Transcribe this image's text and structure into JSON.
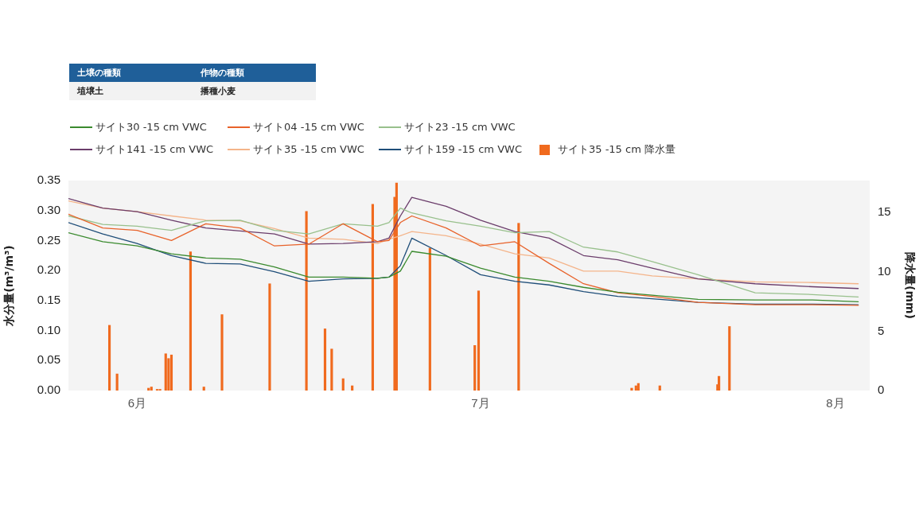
{
  "chart_data": {
    "type": "line",
    "xlabel": null,
    "ylabel": "水分量(m³/m³)",
    "y2label": "降水量(mm)",
    "annotations": [
      "土壌の種類",
      "作物の種類",
      "埴壌土",
      "播種小麦"
    ],
    "x": [
      "--05-26",
      "--05-29",
      "--06-01",
      "--06-04",
      "--06-07",
      "--06-10",
      "--06-13",
      "--06-16",
      "--06-19",
      "--06-22",
      "--06-23",
      "--06-24",
      "--06-25",
      "--06-28",
      "--07-01",
      "--07-04",
      "--07-07",
      "--07-10",
      "--07-13",
      "--07-16",
      "--07-20",
      "--07-25",
      "--07-30",
      "--08-03"
    ],
    "series": [
      {
        "name": "サイト30 -15 cm VWC",
        "color": "#3a8a2e",
        "values": [
          0.263,
          0.248,
          0.241,
          0.228,
          0.221,
          0.219,
          0.206,
          0.189,
          0.189,
          0.187,
          0.189,
          0.199,
          0.232,
          0.224,
          0.204,
          0.189,
          0.182,
          0.172,
          0.164,
          0.159,
          0.152,
          0.151,
          0.151,
          0.148
        ]
      },
      {
        "name": "サイト04 -15 cm VWC",
        "color": "#e8622a",
        "values": [
          0.294,
          0.271,
          0.267,
          0.25,
          0.278,
          0.271,
          0.241,
          0.244,
          0.278,
          0.248,
          0.25,
          0.28,
          0.291,
          0.271,
          0.241,
          0.248,
          0.212,
          0.178,
          0.163,
          0.157,
          0.147,
          0.143,
          0.143,
          0.142
        ]
      },
      {
        "name": "サイト23 -15 cm VWC",
        "color": "#98c08c",
        "values": [
          0.291,
          0.277,
          0.274,
          0.267,
          0.283,
          0.284,
          0.267,
          0.261,
          0.278,
          0.274,
          0.28,
          0.304,
          0.296,
          0.283,
          0.274,
          0.263,
          0.265,
          0.239,
          0.231,
          0.215,
          0.193,
          0.163,
          0.16,
          0.156
        ]
      },
      {
        "name": "サイト141 -15 cm VWC",
        "color": "#6b3d6b",
        "values": [
          0.32,
          0.304,
          0.298,
          0.284,
          0.271,
          0.266,
          0.261,
          0.244,
          0.245,
          0.248,
          0.254,
          0.291,
          0.322,
          0.307,
          0.284,
          0.265,
          0.254,
          0.225,
          0.218,
          0.204,
          0.186,
          0.178,
          0.173,
          0.17
        ]
      },
      {
        "name": "サイト35 -15 cm VWC",
        "color": "#f4b48a",
        "values": [
          0.316,
          0.304,
          0.298,
          0.291,
          0.284,
          0.283,
          0.27,
          0.254,
          0.252,
          0.245,
          0.252,
          0.258,
          0.265,
          0.258,
          0.244,
          0.228,
          0.221,
          0.199,
          0.199,
          0.191,
          0.186,
          0.181,
          0.18,
          0.178
        ]
      },
      {
        "name": "サイト159 -15 cm VWC",
        "color": "#1f4e79",
        "values": [
          0.28,
          0.261,
          0.245,
          0.225,
          0.212,
          0.211,
          0.198,
          0.182,
          0.186,
          0.187,
          0.189,
          0.208,
          0.254,
          0.225,
          0.193,
          0.182,
          0.176,
          0.165,
          0.157,
          0.153,
          0.147,
          0.144,
          0.144,
          0.143
        ]
      },
      {
        "name": "サイト35 -15 cm 降水量",
        "type": "bar",
        "axis": "y2",
        "color": "#f06a1e",
        "x": [
          "--05-29T14:00",
          "--05-30T06:00",
          "--06-02T00:00",
          "--06-02T06:00",
          "--06-02T18:00",
          "--06-03T00:00",
          "--06-03T12:00",
          "--06-03T18:00",
          "--06-04T00:00",
          "--06-05T16:00",
          "--06-06T20:00",
          "--06-08T10:00",
          "--06-12T14:00",
          "--06-15T19:00",
          "--06-17T10:00",
          "--06-18T00:00",
          "--06-19T00:00",
          "--06-19T19:00",
          "--06-21T14:00",
          "--06-23T12:00",
          "--06-23T16:00",
          "--06-26T14:00",
          "--06-30T12:00",
          "--06-30T20:00",
          "--07-04T08:00",
          "--07-14T05:00",
          "--07-14T14:00",
          "--07-14T19:00",
          "--07-16T16:00",
          "--07-21T17:00",
          "--07-21T20:00",
          "--07-22T18:00"
        ],
        "values": [
          5.5,
          1.4,
          0.2,
          0.3,
          0.1,
          0.1,
          3.1,
          2.7,
          3.0,
          11.7,
          0.3,
          6.4,
          9.0,
          15.1,
          5.2,
          3.5,
          1.0,
          0.4,
          15.7,
          16.3,
          17.5,
          12.0,
          3.8,
          8.4,
          14.1,
          0.2,
          0.4,
          0.6,
          0.4,
          0.5,
          1.2,
          5.4
        ]
      }
    ],
    "xlim": [
      "--05-26",
      "--08-04"
    ],
    "xticks": [
      {
        "value": "--06-01",
        "label": "6月"
      },
      {
        "value": "--07-01",
        "label": "7月"
      },
      {
        "value": "--08-01",
        "label": "8月"
      }
    ],
    "ylim": [
      0,
      0.35
    ],
    "yticks": [
      {
        "value": 0,
        "label": "0.00"
      },
      {
        "value": 0.05,
        "label": "0.05"
      },
      {
        "value": 0.1,
        "label": "0.10"
      },
      {
        "value": 0.15,
        "label": "0.15"
      },
      {
        "value": 0.2,
        "label": "0.20"
      },
      {
        "value": 0.25,
        "label": "0.25"
      },
      {
        "value": 0.3,
        "label": "0.30"
      },
      {
        "value": 0.35,
        "label": "0.35"
      }
    ],
    "y2lim": [
      0,
      17.7
    ],
    "y2ticks": [
      0,
      5,
      10,
      15
    ],
    "grid": false,
    "legend": "top left",
    "marker": "none",
    "line_style": "solid"
  }
}
